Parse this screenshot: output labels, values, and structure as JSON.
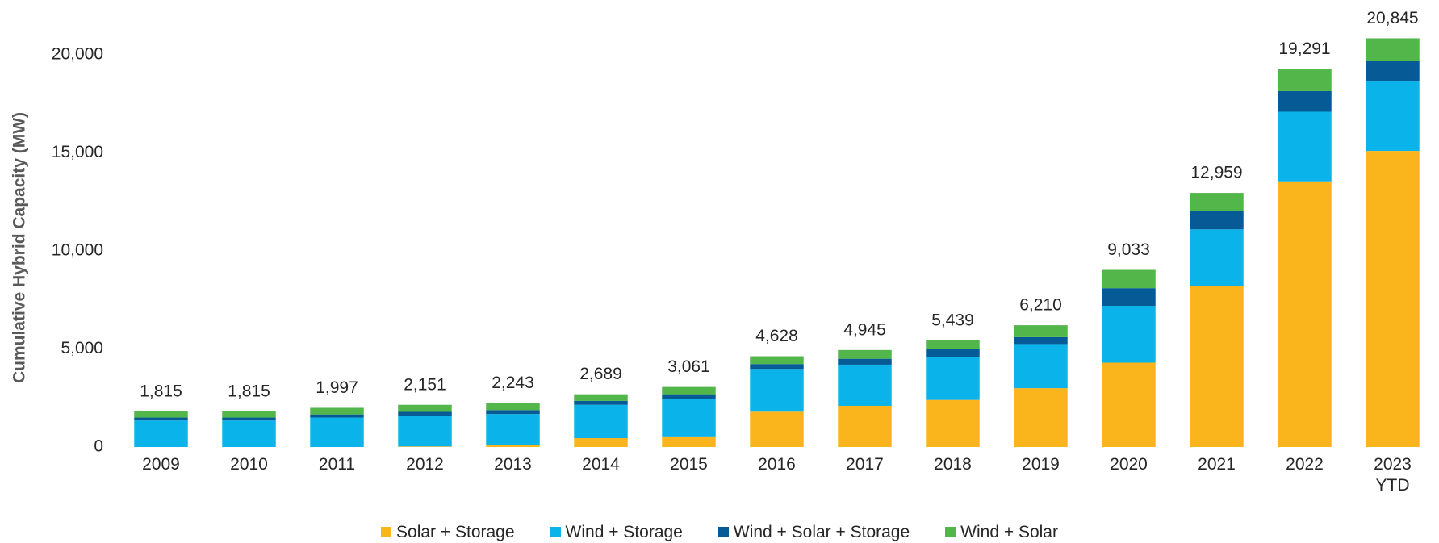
{
  "chart_data": {
    "type": "stacked_bar",
    "y_label": "Cumulative Hybrid Capacity (MW)",
    "categories": [
      "2009",
      "2010",
      "2011",
      "2012",
      "2013",
      "2014",
      "2015",
      "2016",
      "2017",
      "2018",
      "2019",
      "2020",
      "2021",
      "2022",
      "2023\nYTD"
    ],
    "series": [
      {
        "name": "Solar + Storage",
        "color": "#fbb51c",
        "values": [
          0,
          0,
          0,
          30,
          100,
          450,
          500,
          1800,
          2100,
          2400,
          3000,
          4300,
          8200,
          13550,
          15100
        ]
      },
      {
        "name": "Wind + Storage",
        "color": "#0ab4ea",
        "values": [
          1350,
          1350,
          1500,
          1560,
          1580,
          1700,
          1940,
          2180,
          2100,
          2200,
          2250,
          2900,
          2900,
          3550,
          3540
        ]
      },
      {
        "name": "Wind + Solar + Storage",
        "color": "#065a96",
        "values": [
          150,
          150,
          160,
          200,
          200,
          200,
          250,
          250,
          300,
          400,
          350,
          900,
          950,
          1050,
          1050
        ]
      },
      {
        "name": "Wind + Solar",
        "color": "#53b64a",
        "values": [
          315,
          315,
          337,
          361,
          363,
          339,
          371,
          398,
          445,
          439,
          610,
          933,
          909,
          1141,
          1155
        ]
      }
    ],
    "totals": [
      1815,
      1815,
      1997,
      2151,
      2243,
      2689,
      3061,
      4628,
      4945,
      5439,
      6210,
      9033,
      12959,
      19291,
      20845
    ],
    "total_labels": [
      "1,815",
      "1,815",
      "1,997",
      "2,151",
      "2,243",
      "2,689",
      "3,061",
      "4,628",
      "4,945",
      "5,439",
      "6,210",
      "9,033",
      "12,959",
      "19,291",
      "20,845"
    ],
    "ylim": [
      0,
      20000
    ],
    "yticks": [
      0,
      {
        "value": 5000,
        "label": "5,000"
      },
      {
        "value": 10000,
        "label": "10,000"
      },
      {
        "value": 15000,
        "label": "15,000"
      },
      {
        "value": 20000,
        "label": "20,000"
      }
    ],
    "legend": "bottom"
  }
}
